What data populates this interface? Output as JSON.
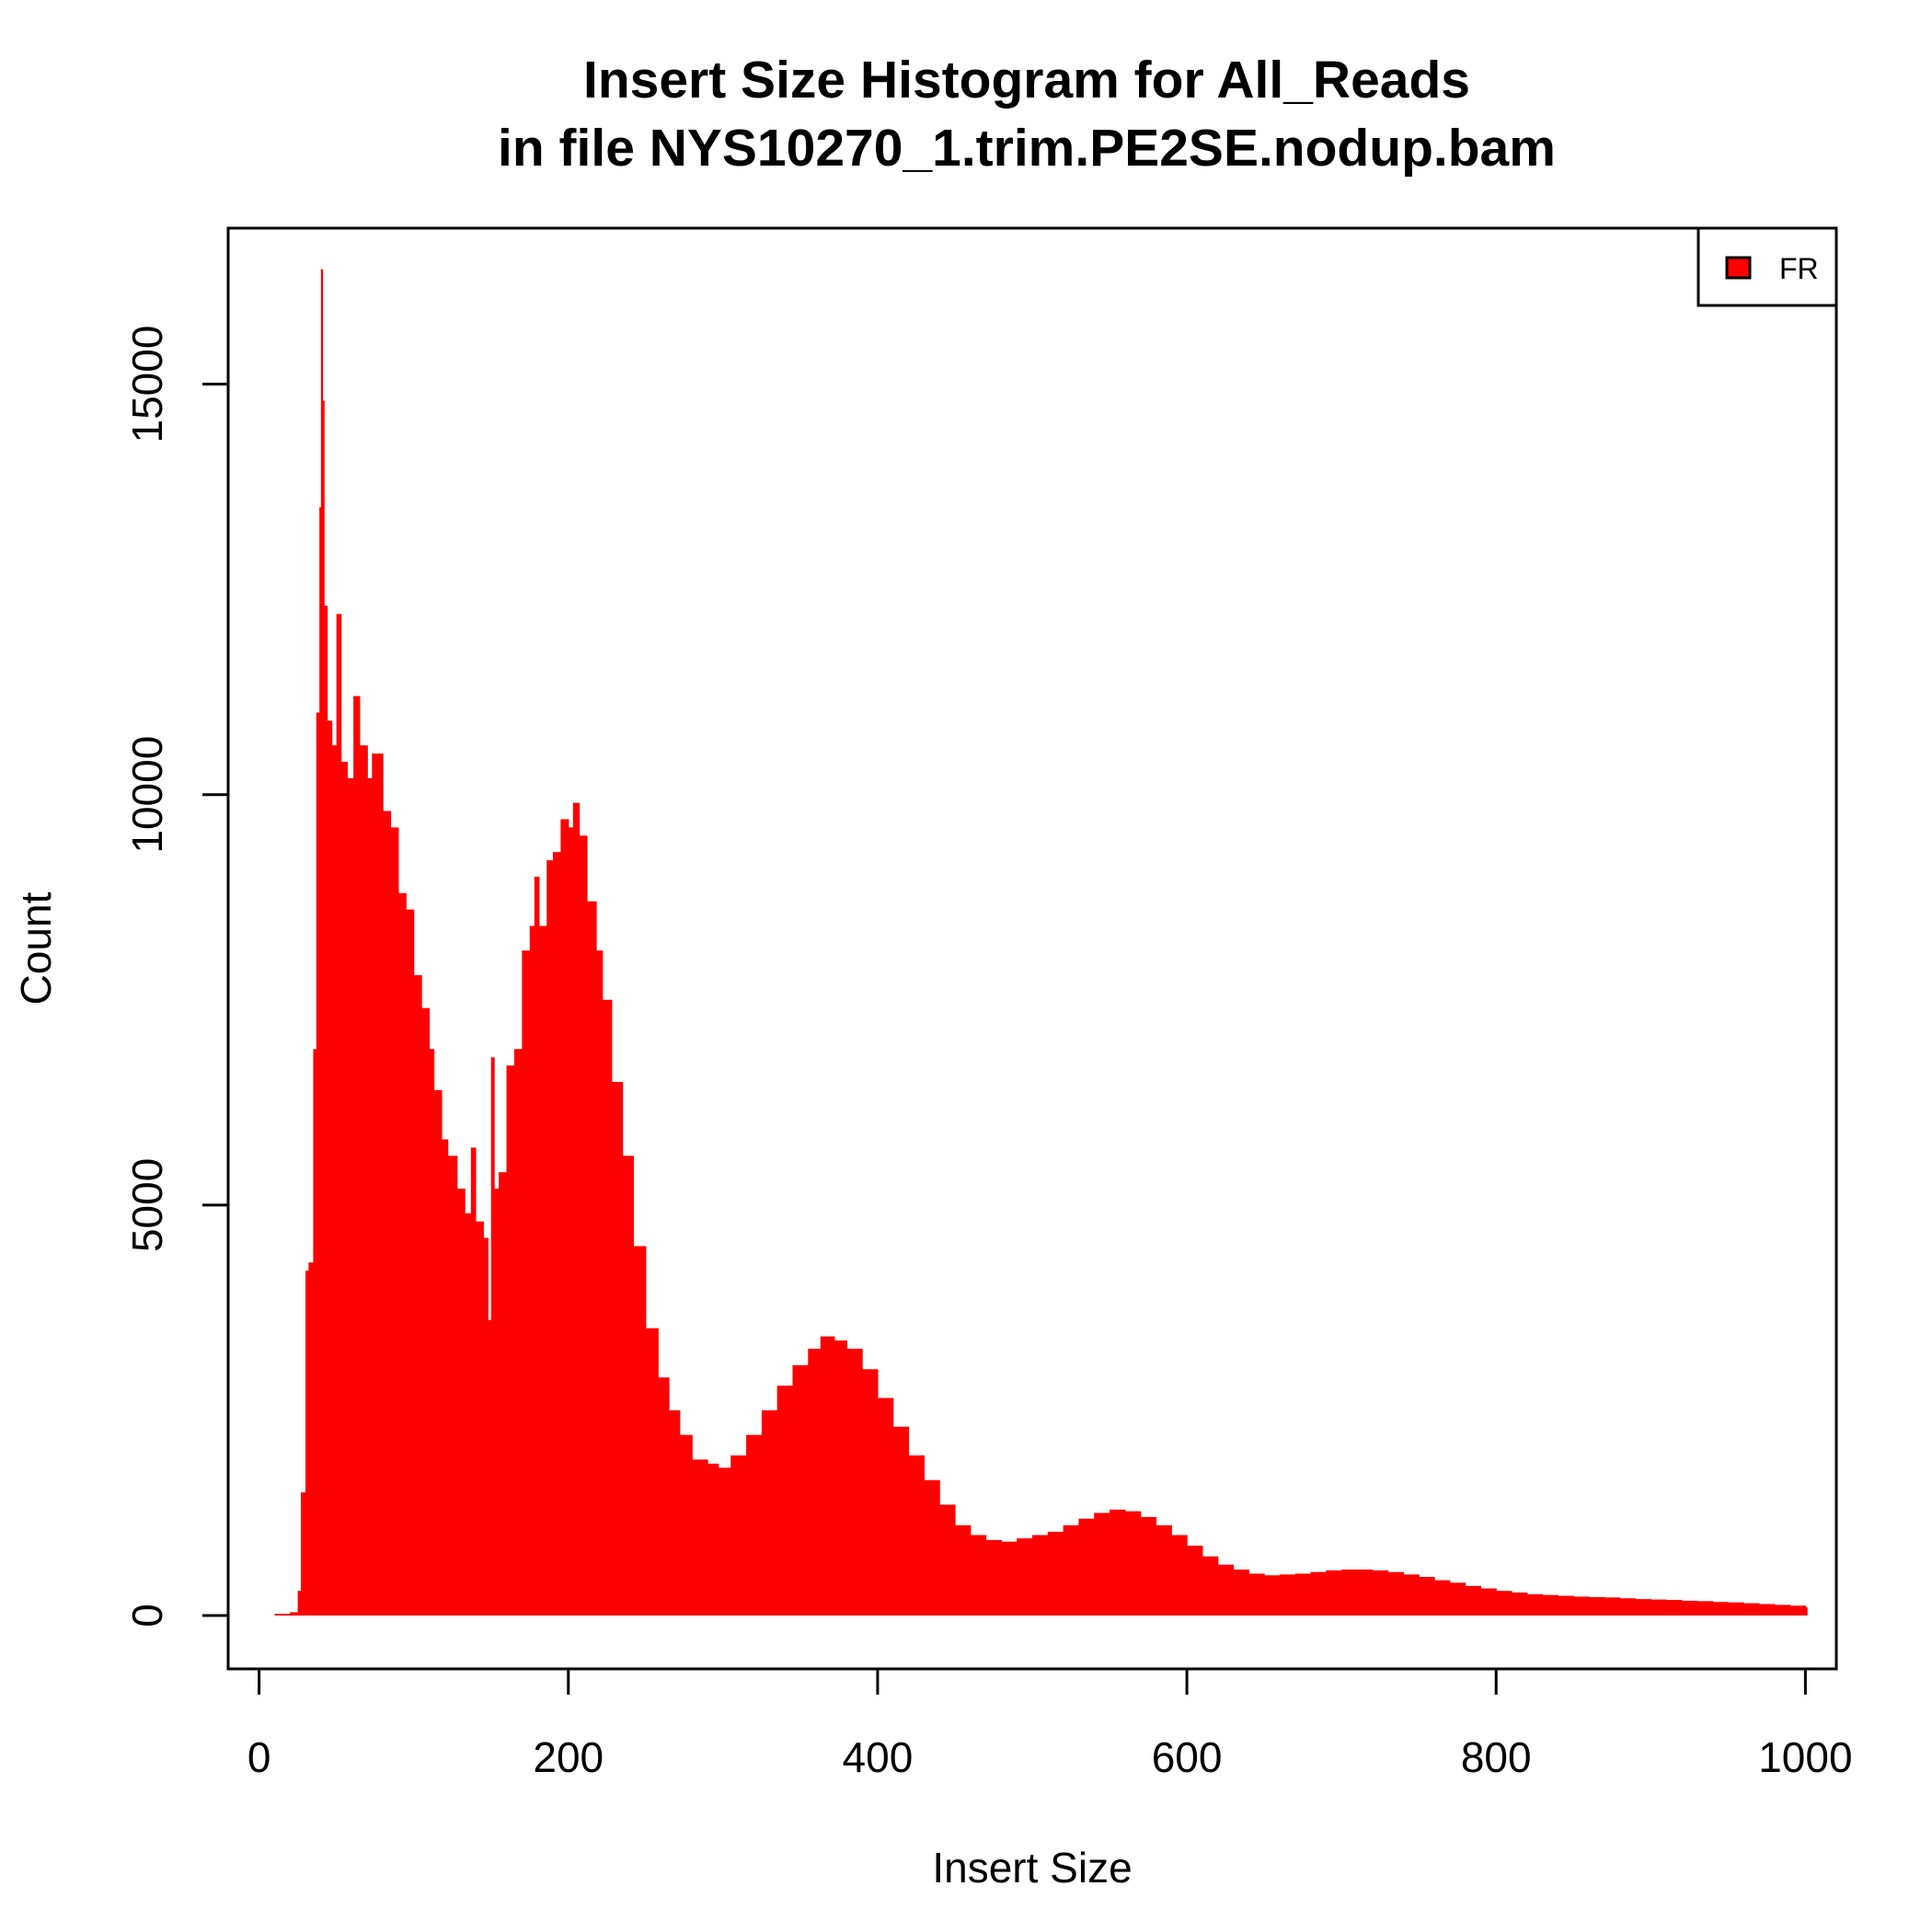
{
  "chart_data": {
    "type": "bar",
    "title_line1": "Insert Size Histogram for All_Reads",
    "title_line2": "in file NYS10270_1.trim.PE2SE.nodup.bam",
    "xlabel": "Insert Size",
    "ylabel": "Count",
    "xlim": [
      -20,
      1020
    ],
    "ylim": [
      -650,
      16900
    ],
    "x_ticks": [
      0,
      200,
      400,
      600,
      800,
      1000
    ],
    "x_tick_labels": [
      "0",
      "200",
      "400",
      "600",
      "800",
      "1000"
    ],
    "y_ticks": [
      0,
      5000,
      10000,
      15000
    ],
    "y_tick_labels": [
      "0",
      "5000",
      "10000",
      "15000"
    ],
    "legend_position": "top-right",
    "bar_color": "#ff0000",
    "series": [
      {
        "name": "FR",
        "color": "#ff0000",
        "points": [
          [
            10,
            20
          ],
          [
            20,
            40
          ],
          [
            25,
            300
          ],
          [
            27,
            1500
          ],
          [
            30,
            4200
          ],
          [
            32,
            4300
          ],
          [
            35,
            6900
          ],
          [
            37,
            11000
          ],
          [
            39,
            13500
          ],
          [
            40,
            16400
          ],
          [
            41,
            14800
          ],
          [
            42,
            12300
          ],
          [
            44,
            10900
          ],
          [
            47,
            10600
          ],
          [
            50,
            12200
          ],
          [
            53,
            10400
          ],
          [
            57,
            10200
          ],
          [
            61,
            11200
          ],
          [
            65,
            10600
          ],
          [
            70,
            10200
          ],
          [
            73,
            10500
          ],
          [
            80,
            9800
          ],
          [
            85,
            9600
          ],
          [
            90,
            8800
          ],
          [
            95,
            8600
          ],
          [
            100,
            7800
          ],
          [
            105,
            7400
          ],
          [
            110,
            6900
          ],
          [
            113,
            6400
          ],
          [
            118,
            5800
          ],
          [
            122,
            5600
          ],
          [
            128,
            5200
          ],
          [
            133,
            4900
          ],
          [
            137,
            5700
          ],
          [
            140,
            4800
          ],
          [
            145,
            4600
          ],
          [
            148,
            3600
          ],
          [
            150,
            6800
          ],
          [
            152,
            5200
          ],
          [
            155,
            5400
          ],
          [
            160,
            6700
          ],
          [
            165,
            6900
          ],
          [
            170,
            8100
          ],
          [
            175,
            8400
          ],
          [
            178,
            9000
          ],
          [
            181,
            8400
          ],
          [
            186,
            9200
          ],
          [
            190,
            9300
          ],
          [
            195,
            9700
          ],
          [
            200,
            9600
          ],
          [
            203,
            9900
          ],
          [
            207,
            9500
          ],
          [
            212,
            8700
          ],
          [
            218,
            8100
          ],
          [
            222,
            7500
          ],
          [
            228,
            6500
          ],
          [
            235,
            5600
          ],
          [
            242,
            4500
          ],
          [
            250,
            3500
          ],
          [
            258,
            2900
          ],
          [
            265,
            2500
          ],
          [
            272,
            2200
          ],
          [
            280,
            1900
          ],
          [
            290,
            1850
          ],
          [
            297,
            1800
          ],
          [
            305,
            1950
          ],
          [
            315,
            2200
          ],
          [
            325,
            2500
          ],
          [
            335,
            2800
          ],
          [
            345,
            3050
          ],
          [
            355,
            3250
          ],
          [
            363,
            3400
          ],
          [
            372,
            3350
          ],
          [
            380,
            3250
          ],
          [
            390,
            3000
          ],
          [
            400,
            2650
          ],
          [
            410,
            2300
          ],
          [
            420,
            1950
          ],
          [
            430,
            1650
          ],
          [
            440,
            1350
          ],
          [
            450,
            1100
          ],
          [
            460,
            980
          ],
          [
            470,
            920
          ],
          [
            480,
            900
          ],
          [
            490,
            940
          ],
          [
            500,
            980
          ],
          [
            510,
            1020
          ],
          [
            520,
            1100
          ],
          [
            530,
            1180
          ],
          [
            540,
            1250
          ],
          [
            550,
            1290
          ],
          [
            560,
            1270
          ],
          [
            570,
            1200
          ],
          [
            580,
            1100
          ],
          [
            590,
            980
          ],
          [
            600,
            850
          ],
          [
            610,
            720
          ],
          [
            620,
            620
          ],
          [
            630,
            560
          ],
          [
            640,
            510
          ],
          [
            650,
            490
          ],
          [
            660,
            500
          ],
          [
            670,
            510
          ],
          [
            680,
            530
          ],
          [
            690,
            550
          ],
          [
            700,
            560
          ],
          [
            710,
            560
          ],
          [
            720,
            550
          ],
          [
            730,
            530
          ],
          [
            740,
            500
          ],
          [
            750,
            470
          ],
          [
            760,
            430
          ],
          [
            770,
            400
          ],
          [
            780,
            360
          ],
          [
            790,
            330
          ],
          [
            800,
            300
          ],
          [
            810,
            280
          ],
          [
            820,
            260
          ],
          [
            830,
            250
          ],
          [
            840,
            240
          ],
          [
            850,
            230
          ],
          [
            860,
            225
          ],
          [
            870,
            220
          ],
          [
            880,
            210
          ],
          [
            890,
            200
          ],
          [
            900,
            195
          ],
          [
            910,
            190
          ],
          [
            920,
            180
          ],
          [
            930,
            175
          ],
          [
            940,
            165
          ],
          [
            950,
            160
          ],
          [
            960,
            150
          ],
          [
            970,
            140
          ],
          [
            980,
            130
          ],
          [
            990,
            120
          ],
          [
            1000,
            100
          ]
        ]
      }
    ]
  }
}
